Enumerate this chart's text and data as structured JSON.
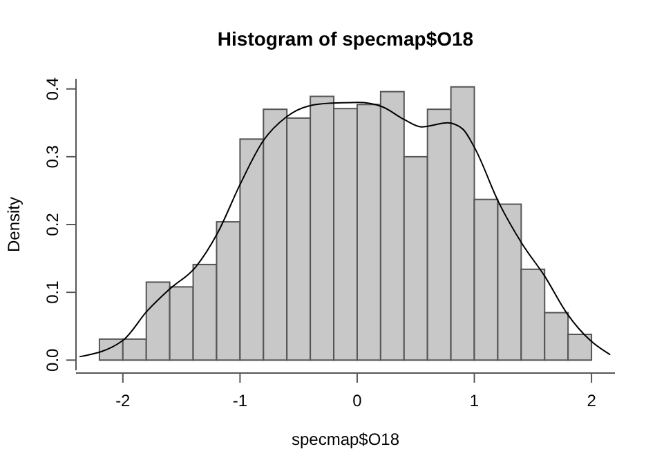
{
  "chart_data": {
    "type": "histogram",
    "title": "Histogram of specmap$O18",
    "xlabel": "specmap$O18",
    "ylabel": "Density",
    "bins": [
      -2.2,
      -2.0,
      -1.8,
      -1.6,
      -1.4,
      -1.2,
      -1.0,
      -0.8,
      -0.6,
      -0.4,
      -0.2,
      0.0,
      0.2,
      0.4,
      0.6,
      0.8,
      1.0,
      1.2,
      1.4,
      1.6,
      1.8,
      2.0
    ],
    "values": [
      0.031,
      0.031,
      0.115,
      0.108,
      0.141,
      0.204,
      0.326,
      0.37,
      0.357,
      0.389,
      0.371,
      0.377,
      0.396,
      0.3,
      0.37,
      0.403,
      0.237,
      0.23,
      0.134,
      0.07,
      0.038
    ],
    "color": "#c8c8c8",
    "series": [
      {
        "type": "line",
        "color": "#000000",
        "x": [
          -2.37,
          -2.0,
          -1.79,
          -1.6,
          -1.38,
          -1.19,
          -1.0,
          -0.8,
          -0.61,
          -0.41,
          -0.22,
          0.01,
          0.21,
          0.4,
          0.55,
          0.77,
          0.9,
          1.0,
          1.21,
          1.41,
          1.6,
          1.79,
          1.99,
          2.16
        ],
        "values": [
          0.005,
          0.029,
          0.073,
          0.105,
          0.137,
          0.188,
          0.259,
          0.324,
          0.358,
          0.375,
          0.379,
          0.38,
          0.374,
          0.355,
          0.344,
          0.35,
          0.341,
          0.314,
          0.232,
          0.171,
          0.124,
          0.069,
          0.029,
          0.008
        ]
      }
    ],
    "xlim": [
      -2.4,
      2.2
    ],
    "ylim": [
      -0.015,
      0.415
    ],
    "xticks": [
      -2,
      -1,
      0,
      1,
      2
    ],
    "yticks": [
      {
        "value": 0,
        "label": "0.0"
      },
      0.1,
      0.2,
      0.3,
      0.4
    ]
  }
}
